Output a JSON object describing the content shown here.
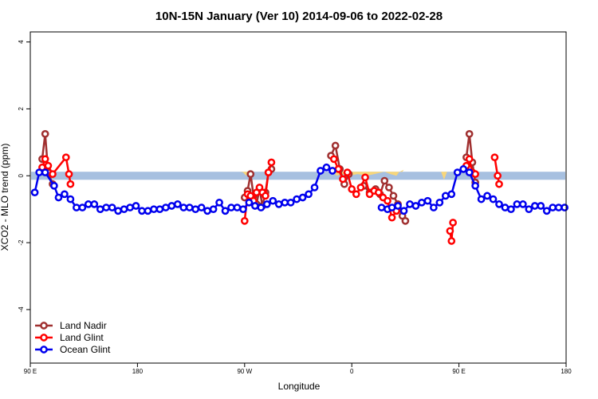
{
  "chart_data": {
    "type": "line",
    "title": "10N-15N January (Ver 10)   2014-09-06 to 2022-02-28",
    "xlabel": "Longitude",
    "ylabel": "XCO2 - MLO trend (ppm)",
    "xlim": [
      0,
      360
    ],
    "ylim": [
      -5.6,
      4.3
    ],
    "x_ticks": [
      {
        "value": 0,
        "label": "90 E"
      },
      {
        "value": 72,
        "label": "180"
      },
      {
        "value": 144,
        "label": "90 W"
      },
      {
        "value": 216,
        "label": "0"
      },
      {
        "value": 288,
        "label": "90 E"
      },
      {
        "value": 360,
        "label": "180"
      }
    ],
    "y_ticks": [
      {
        "value": 4,
        "label": "4"
      },
      {
        "value": 2,
        "label": "2"
      },
      {
        "value": 0,
        "label": "0"
      },
      {
        "value": -2,
        "label": "-2"
      },
      {
        "value": -4,
        "label": "-4"
      }
    ],
    "zero_band": {
      "y_min": -0.12,
      "y_max": 0.12,
      "color": "#a7c0e0"
    },
    "land_mask": {
      "color": "#f8d67a",
      "segments": [
        [
          [
            143,
            0.1
          ],
          [
            145,
            0.0
          ],
          [
            147,
            0.12
          ],
          [
            141,
            0.12
          ]
        ],
        [
          [
            203,
            0.12
          ],
          [
            206,
            0.0
          ],
          [
            209,
            0.05
          ],
          [
            214,
            0.0
          ],
          [
            220,
            0.05
          ],
          [
            226,
            0.0
          ],
          [
            232,
            0.06
          ],
          [
            238,
            0.12
          ],
          [
            242,
            0.05
          ],
          [
            246,
            0.0
          ],
          [
            248,
            0.12
          ],
          [
            251,
            0.18
          ],
          [
            250,
            0.12
          ]
        ],
        [
          [
            276,
            0.12
          ],
          [
            277,
            0.0
          ],
          [
            278,
            -0.12
          ],
          [
            279,
            0.0
          ],
          [
            280,
            0.12
          ]
        ]
      ]
    },
    "series": [
      {
        "name": "Land Nadir",
        "color": "#a03030",
        "segments": [
          [
            [
              8,
              0.5
            ],
            [
              10,
              1.25
            ],
            [
              12,
              0.1
            ],
            [
              15,
              -0.25
            ]
          ],
          [
            [
              144,
              -0.65
            ],
            [
              146,
              -0.45
            ],
            [
              148,
              0.05
            ],
            [
              150,
              -0.6
            ],
            [
              152,
              -0.85
            ],
            [
              154,
              -0.4
            ],
            [
              156,
              -0.9
            ],
            [
              158,
              -0.5
            ],
            [
              160,
              0.1
            ],
            [
              162,
              0.2
            ]
          ],
          [
            [
              202,
              0.6
            ],
            [
              205,
              0.9
            ],
            [
              208,
              0.2
            ],
            [
              211,
              -0.25
            ],
            [
              214,
              0.05
            ]
          ],
          [
            [
              224,
              -0.3
            ],
            [
              228,
              -0.5
            ],
            [
              232,
              -0.4
            ],
            [
              235,
              -0.55
            ],
            [
              238,
              -0.15
            ],
            [
              241,
              -0.35
            ],
            [
              244,
              -0.6
            ],
            [
              247,
              -0.85
            ],
            [
              250,
              -1.2
            ],
            [
              252,
              -1.35
            ]
          ],
          [
            [
              293,
              0.55
            ],
            [
              295,
              1.25
            ],
            [
              297,
              0.4
            ],
            [
              299,
              -0.2
            ]
          ]
        ]
      },
      {
        "name": "Land Glint",
        "color": "#ff0000",
        "segments": [
          [
            [
              8,
              0.25
            ],
            [
              10,
              0.5
            ],
            [
              12,
              0.3
            ],
            [
              15,
              0.05
            ],
            [
              24,
              0.55
            ],
            [
              26,
              0.05
            ],
            [
              27,
              -0.25
            ]
          ],
          [
            [
              144,
              -1.35
            ],
            [
              146,
              -0.55
            ],
            [
              148,
              -0.6
            ],
            [
              150,
              -0.75
            ],
            [
              152,
              -0.5
            ],
            [
              154,
              -0.35
            ],
            [
              156,
              -0.5
            ],
            [
              158,
              -0.6
            ],
            [
              160,
              0.1
            ],
            [
              162,
              0.4
            ]
          ],
          [
            [
              204,
              0.5
            ],
            [
              207,
              0.2
            ],
            [
              210,
              -0.1
            ],
            [
              213,
              0.1
            ],
            [
              216,
              -0.4
            ],
            [
              219,
              -0.55
            ],
            [
              222,
              -0.35
            ],
            [
              225,
              -0.05
            ],
            [
              228,
              -0.55
            ],
            [
              231,
              -0.45
            ],
            [
              234,
              -0.5
            ],
            [
              237,
              -0.65
            ],
            [
              240,
              -0.75
            ],
            [
              243,
              -1.25
            ],
            [
              246,
              -1.05
            ]
          ],
          [
            [
              282,
              -1.65
            ],
            [
              283,
              -1.95
            ],
            [
              284,
              -1.4
            ]
          ],
          [
            [
              293,
              0.3
            ],
            [
              295,
              0.5
            ],
            [
              297,
              0.1
            ],
            [
              299,
              0.05
            ]
          ],
          [
            [
              312,
              0.55
            ],
            [
              314,
              0.0
            ],
            [
              315,
              -0.25
            ]
          ]
        ]
      },
      {
        "name": "Ocean Glint",
        "color": "#0000ee",
        "segments": [
          [
            [
              3,
              -0.5
            ],
            [
              6,
              0.1
            ],
            [
              10,
              0.1
            ],
            [
              16,
              -0.3
            ],
            [
              19,
              -0.65
            ],
            [
              23,
              -0.55
            ],
            [
              27,
              -0.7
            ],
            [
              31,
              -0.95
            ],
            [
              35,
              -0.95
            ],
            [
              39,
              -0.85
            ],
            [
              43,
              -0.85
            ],
            [
              47,
              -1.0
            ],
            [
              51,
              -0.95
            ],
            [
              55,
              -0.95
            ],
            [
              59,
              -1.05
            ],
            [
              63,
              -1.0
            ],
            [
              67,
              -0.95
            ],
            [
              71,
              -0.9
            ],
            [
              75,
              -1.05
            ],
            [
              79,
              -1.05
            ],
            [
              83,
              -1.0
            ],
            [
              87,
              -1.0
            ],
            [
              91,
              -0.95
            ],
            [
              95,
              -0.9
            ],
            [
              99,
              -0.85
            ],
            [
              103,
              -0.95
            ],
            [
              107,
              -0.95
            ],
            [
              111,
              -1.0
            ],
            [
              115,
              -0.95
            ],
            [
              119,
              -1.05
            ],
            [
              123,
              -1.0
            ],
            [
              127,
              -0.8
            ],
            [
              131,
              -1.05
            ],
            [
              135,
              -0.95
            ],
            [
              139,
              -0.95
            ],
            [
              143,
              -1.0
            ],
            [
              147,
              -0.8
            ],
            [
              151,
              -0.9
            ],
            [
              155,
              -0.95
            ],
            [
              159,
              -0.85
            ],
            [
              163,
              -0.75
            ],
            [
              167,
              -0.85
            ],
            [
              171,
              -0.8
            ],
            [
              175,
              -0.8
            ],
            [
              179,
              -0.7
            ],
            [
              183,
              -0.65
            ],
            [
              187,
              -0.55
            ],
            [
              191,
              -0.35
            ],
            [
              195,
              0.15
            ],
            [
              199,
              0.25
            ],
            [
              203,
              0.15
            ]
          ],
          [
            [
              236,
              -0.95
            ],
            [
              240,
              -1.0
            ],
            [
              243,
              -0.95
            ],
            [
              247,
              -0.9
            ],
            [
              251,
              -1.05
            ],
            [
              255,
              -0.85
            ],
            [
              259,
              -0.9
            ],
            [
              263,
              -0.8
            ],
            [
              267,
              -0.75
            ],
            [
              271,
              -0.95
            ],
            [
              275,
              -0.8
            ],
            [
              279,
              -0.6
            ],
            [
              283,
              -0.55
            ],
            [
              287,
              0.1
            ],
            [
              291,
              0.2
            ],
            [
              295,
              0.1
            ],
            [
              299,
              -0.3
            ],
            [
              303,
              -0.7
            ],
            [
              307,
              -0.6
            ],
            [
              311,
              -0.7
            ],
            [
              315,
              -0.85
            ],
            [
              319,
              -0.95
            ],
            [
              323,
              -1.0
            ],
            [
              327,
              -0.85
            ],
            [
              331,
              -0.85
            ],
            [
              335,
              -1.0
            ],
            [
              339,
              -0.9
            ],
            [
              343,
              -0.9
            ],
            [
              347,
              -1.05
            ],
            [
              351,
              -0.95
            ],
            [
              355,
              -0.95
            ],
            [
              359,
              -0.95
            ]
          ]
        ]
      }
    ],
    "legend": {
      "position": "bottom-left"
    }
  }
}
